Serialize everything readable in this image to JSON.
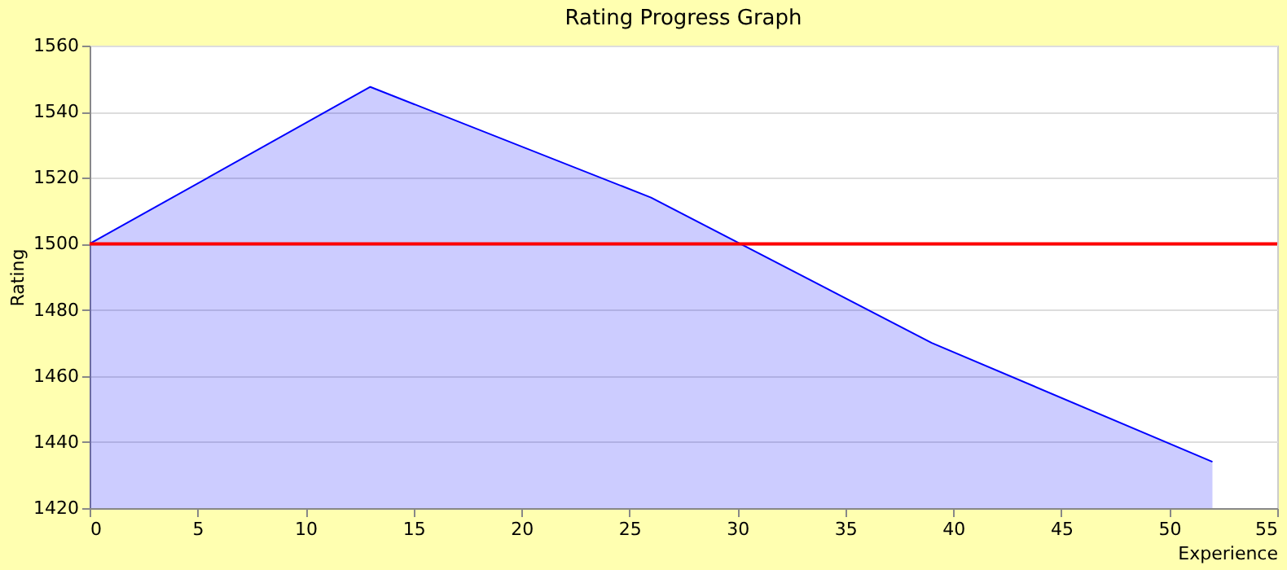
{
  "chart_data": {
    "type": "area",
    "title": "Rating Progress Graph",
    "xlabel": "Experience",
    "ylabel": "Rating",
    "x": [
      0,
      13,
      26,
      39,
      52
    ],
    "series": [
      {
        "color": "#0000ff",
        "values": [
          1500,
          1547.5,
          1514,
          1470,
          1434
        ]
      }
    ],
    "xlim": [
      0,
      55
    ],
    "xticks": [
      0,
      5,
      10,
      15,
      20,
      25,
      30,
      35,
      40,
      45,
      50,
      55
    ],
    "ylim": [
      1420,
      1560
    ],
    "yticks": [
      1420,
      1440,
      1460,
      1480,
      1500,
      1520,
      1540,
      1560
    ],
    "ref_lines": [
      {
        "axis": "y",
        "value": 1500,
        "color": "#ff0000"
      }
    ],
    "grid": "y"
  }
}
